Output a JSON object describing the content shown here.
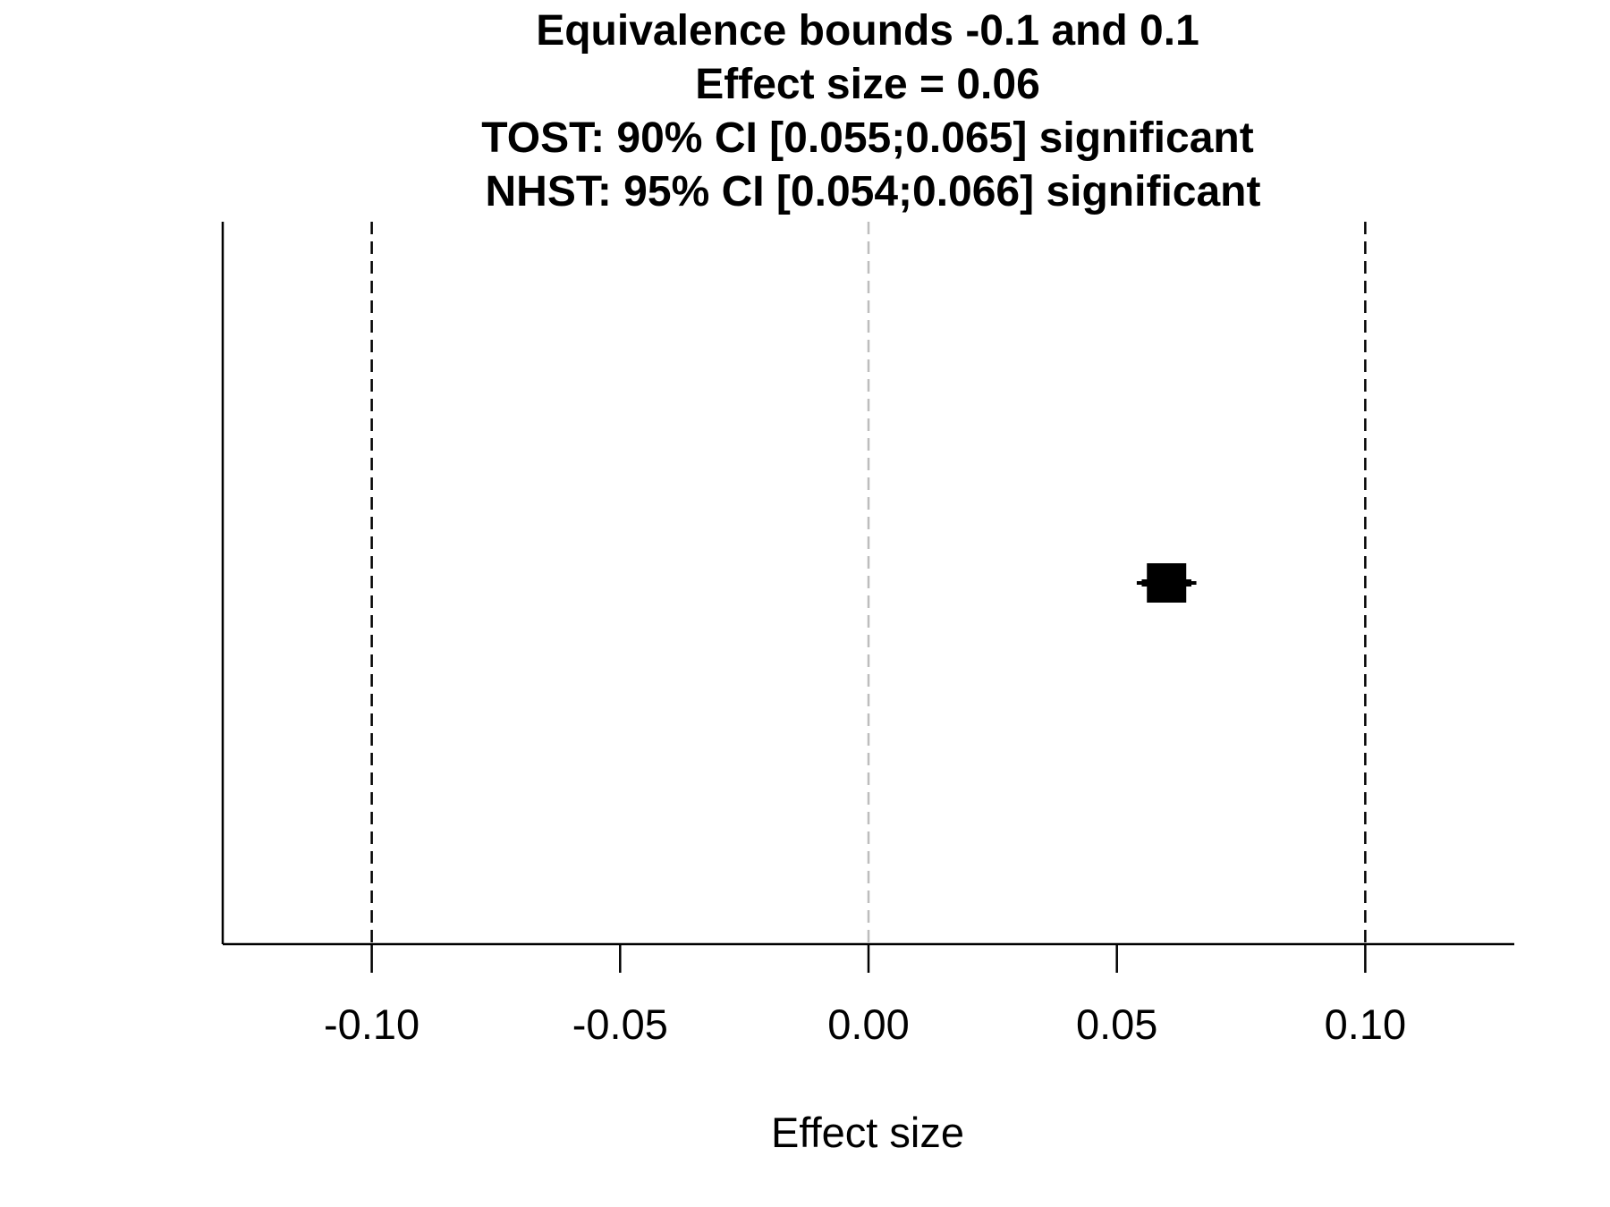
{
  "chart_data": {
    "type": "scatter",
    "title_lines": [
      "Equivalence bounds -0.1 and 0.1",
      "Effect size = 0.06",
      "TOST: 90% CI [0.055;0.065] significant",
      "NHST: 95% CI [0.054;0.066] significant"
    ],
    "xlabel": "Effect size",
    "ylabel": "",
    "xlim": [
      -0.13,
      0.13
    ],
    "x_ticks": [
      -0.1,
      -0.05,
      0.0,
      0.05,
      0.1
    ],
    "x_tick_labels": [
      "-0.10",
      "-0.05",
      "0.00",
      "0.05",
      "0.10"
    ],
    "equivalence_bounds": [
      -0.1,
      0.1
    ],
    "reference_line": 0.0,
    "point_estimate": 0.06,
    "ci_90": [
      0.055,
      0.065
    ],
    "ci_95": [
      0.054,
      0.066
    ],
    "grid": false,
    "colors": {
      "bounds": "#000000",
      "reference": "#bdbdbd",
      "marker": "#000000",
      "axis": "#000000"
    }
  }
}
